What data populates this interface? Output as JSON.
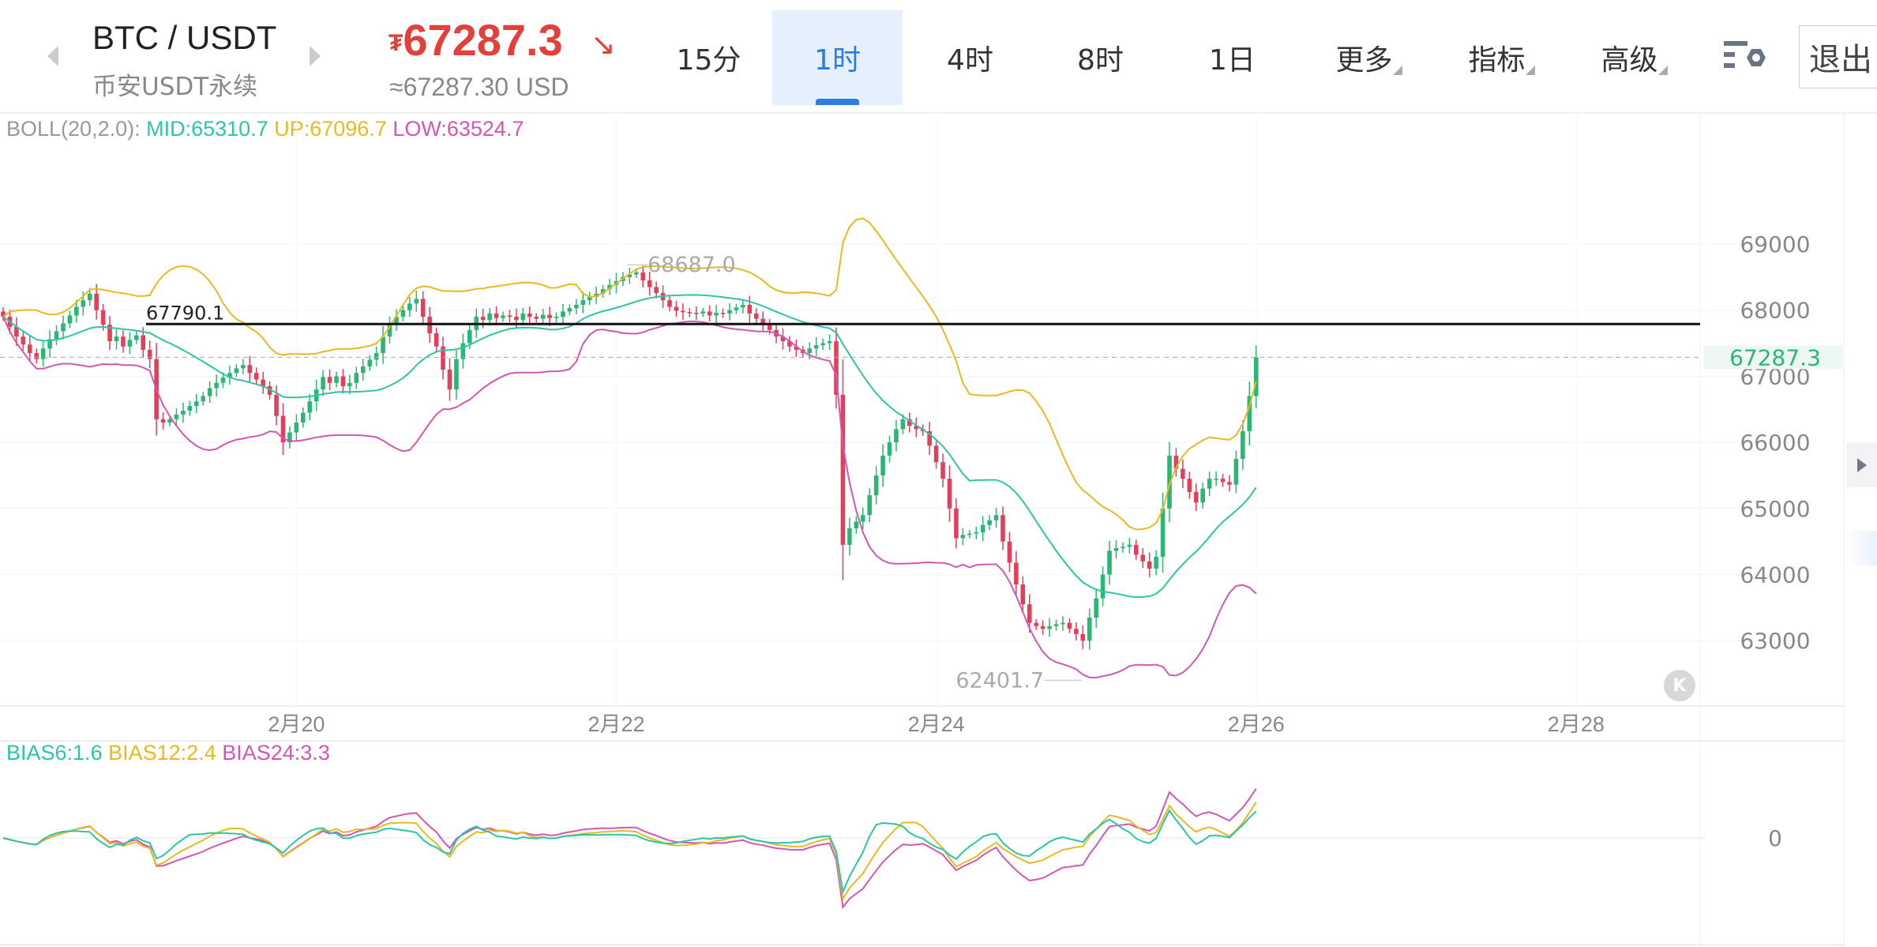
{
  "header": {
    "symbol": "BTC / USDT",
    "exchange": "币安USDT永续",
    "currency_icon": "₮",
    "price": "67287.3",
    "trend_icon": "↘",
    "usd_price": "≈67287.30 USD",
    "tabs": [
      {
        "label": "15分"
      },
      {
        "label": "1时",
        "active": true
      },
      {
        "label": "4时"
      },
      {
        "label": "8时"
      },
      {
        "label": "1日"
      },
      {
        "label": "更多",
        "dropdown": true
      },
      {
        "label": "指标",
        "dropdown": true
      },
      {
        "label": "高级",
        "dropdown": true
      }
    ],
    "settings_icon": "chart-settings-icon",
    "exit_label": "退出"
  },
  "boll_legend": {
    "name": "BOLL(20,2.0):",
    "mid": "MID:65310.7",
    "up": "UP:67096.7",
    "low": "LOW:63524.7"
  },
  "bias_legend": {
    "b6": "BIAS6:1.6",
    "b12": "BIAS12:2.4",
    "b24": "BIAS24:3.3"
  },
  "colors": {
    "up": "#2bb673",
    "down": "#e0405a",
    "mid": "#2ec4a6",
    "upper": "#e8b923",
    "lower": "#d257b4",
    "accent": "#2a7ee0",
    "price_red": "#e2403a"
  },
  "chart_data": {
    "type": "candlestick",
    "interval": "1时",
    "y_ticks": [
      "69000",
      "68000",
      "67000",
      "66000",
      "65000",
      "64000",
      "63000"
    ],
    "x_ticks": [
      "2月20",
      "2月22",
      "2月24",
      "2月26",
      "2月28"
    ],
    "ylim": [
      62100,
      69600
    ],
    "current_price_label": "67287.3",
    "horizontal_line_label": "67790.1",
    "high_label": "68687.0",
    "low_label": "62401.7",
    "bias_zero_label": "0",
    "close": [
      67900,
      67750,
      67600,
      67480,
      67350,
      67260,
      67420,
      67560,
      67680,
      67800,
      67920,
      68050,
      68150,
      68250,
      68000,
      67780,
      67530,
      67600,
      67450,
      67550,
      67620,
      67400,
      67260,
      66350,
      66300,
      66350,
      66420,
      66480,
      66550,
      66620,
      66700,
      66820,
      66900,
      66980,
      67050,
      67120,
      67170,
      67050,
      66950,
      66850,
      66720,
      66400,
      66000,
      66150,
      66300,
      66450,
      66620,
      66800,
      66990,
      66900,
      67000,
      66850,
      66900,
      67050,
      67150,
      67250,
      67350,
      67600,
      67800,
      67900,
      68000,
      68100,
      68170,
      67900,
      67650,
      67450,
      67100,
      66800,
      67260,
      67500,
      67700,
      67900,
      67850,
      67950,
      67880,
      67920,
      67900,
      67850,
      67950,
      67900,
      67870,
      67930,
      67880,
      67900,
      67980,
      68030,
      68080,
      68150,
      68200,
      68250,
      68320,
      68380,
      68440,
      68500,
      68540,
      68570,
      68450,
      68350,
      68260,
      68150,
      68050,
      67990,
      67970,
      67960,
      67950,
      67980,
      67920,
      67960,
      67950,
      68000,
      68040,
      68080,
      67950,
      67870,
      67800,
      67700,
      67600,
      67530,
      67450,
      67400,
      67350,
      67420,
      67470,
      67500,
      67530,
      66720,
      64450,
      64700,
      64800,
      64900,
      65200,
      65500,
      65800,
      66000,
      66200,
      66350,
      66250,
      66200,
      66170,
      65950,
      65700,
      65450,
      65000,
      64550,
      64600,
      64620,
      64640,
      64750,
      64820,
      64900,
      64500,
      64180,
      63850,
      63550,
      63270,
      63220,
      63180,
      63220,
      63250,
      63270,
      63180,
      63100,
      63000,
      63350,
      63640,
      64000,
      64360,
      64400,
      64420,
      64450,
      64300,
      64200,
      64090,
      64270,
      65000,
      65800,
      65600,
      65450,
      65250,
      65090,
      65300,
      65450,
      65450,
      65400,
      65360,
      65750,
      66170,
      66700,
      67287.3
    ]
  }
}
